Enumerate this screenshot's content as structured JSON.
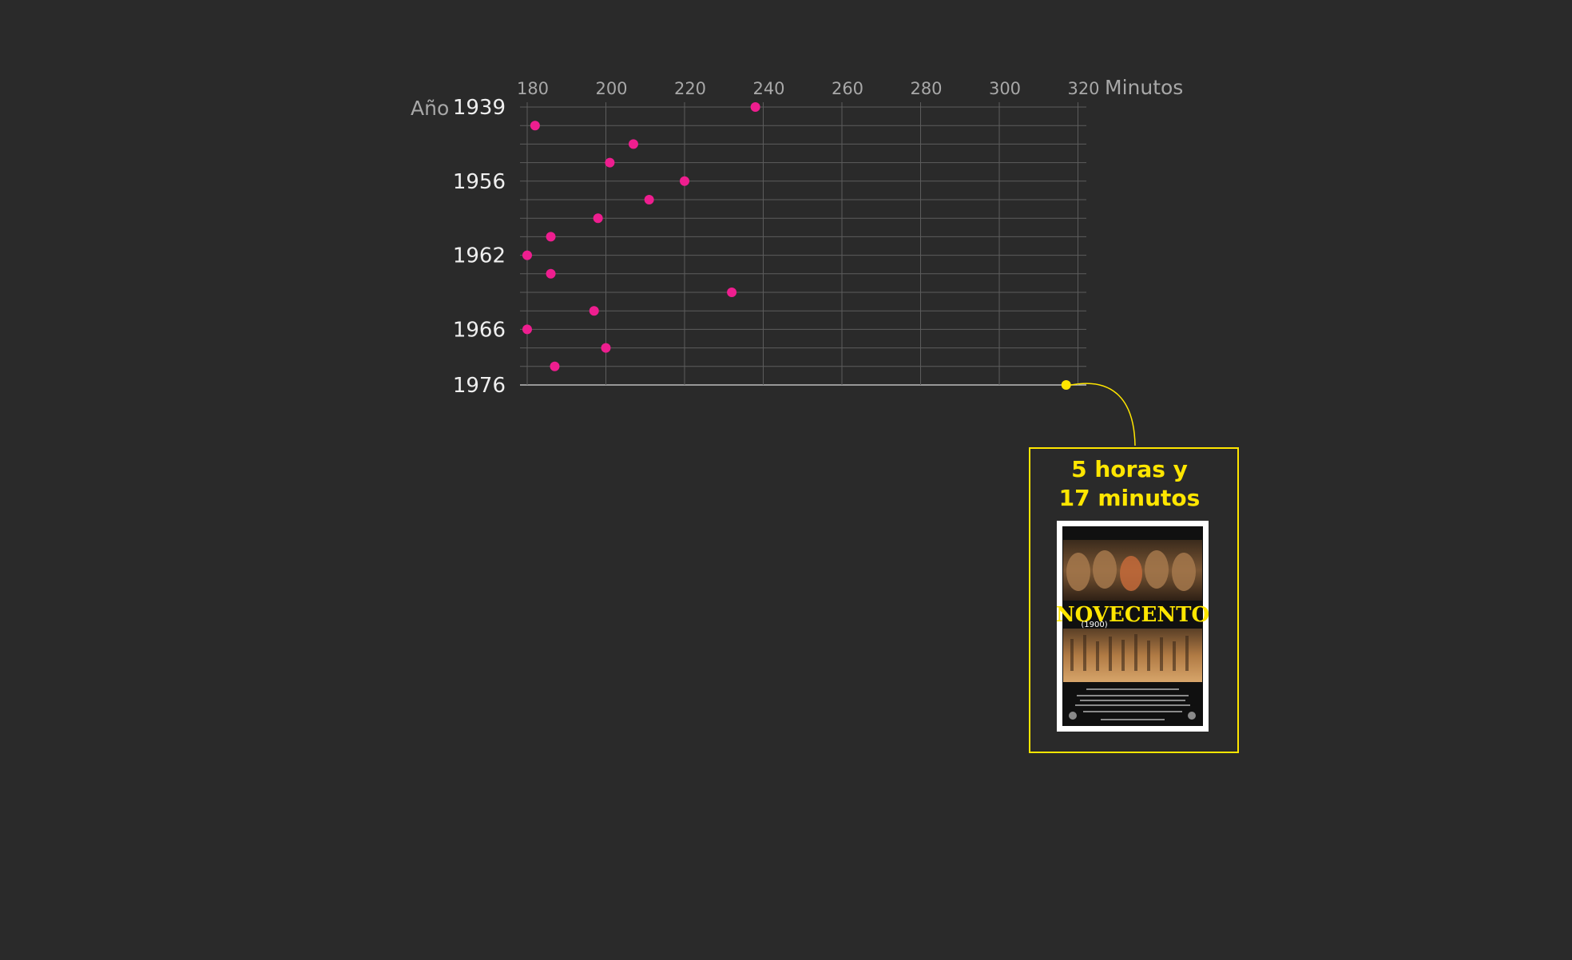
{
  "chart_data": {
    "type": "scatter",
    "xlabel": "Minutos",
    "ylabel": "Año",
    "xlim": [
      178,
      322
    ],
    "x_ticks": [
      180,
      200,
      220,
      240,
      260,
      280,
      300,
      320
    ],
    "y_tick_labels": [
      "1939",
      "1956",
      "1962",
      "1966",
      "1976"
    ],
    "rows": 16,
    "points": [
      {
        "row": 0,
        "x": 238
      },
      {
        "row": 1,
        "x": 182
      },
      {
        "row": 2,
        "x": 207
      },
      {
        "row": 3,
        "x": 201
      },
      {
        "row": 4,
        "x": 220
      },
      {
        "row": 5,
        "x": 211
      },
      {
        "row": 6,
        "x": 198
      },
      {
        "row": 7,
        "x": 186
      },
      {
        "row": 8,
        "x": 180
      },
      {
        "row": 9,
        "x": 186
      },
      {
        "row": 10,
        "x": 232
      },
      {
        "row": 11,
        "x": 197
      },
      {
        "row": 12,
        "x": 180
      },
      {
        "row": 13,
        "x": 200
      },
      {
        "row": 14,
        "x": 187
      },
      {
        "row": 15,
        "x": 317
      }
    ],
    "colors": {
      "point": "#ee1e8f",
      "highlight": "#ffe600",
      "grid": "#5c5c5c",
      "baseline": "#bdbdbd"
    }
  },
  "callout": {
    "title_line1": "5 horas y",
    "title_line2": "17 minutos",
    "poster": {
      "title": "NOVECENTO",
      "subtitle": "(1900)"
    }
  }
}
